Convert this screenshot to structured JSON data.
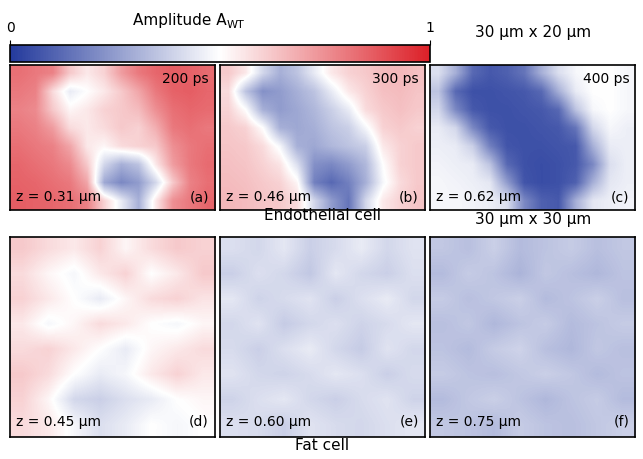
{
  "chart_data": {
    "type": "heatmap",
    "tick_labels": false,
    "colorbar": {
      "label": "Amplitude A",
      "label_subscript": "WT",
      "range": [
        0,
        1
      ],
      "ticks": [
        0,
        1
      ]
    },
    "groups": [
      {
        "label": "Endothelial cell",
        "size": "30 µm x 20 µm",
        "panels": [
          {
            "letter": "(a)",
            "time": "200 ps",
            "z": "z = 0.31 µm",
            "cells": [
              [
                0.82,
                0.8,
                0.78,
                0.62,
                0.55,
                0.6,
                0.72,
                0.8,
                0.84,
                0.86,
                0.85,
                0.83
              ],
              [
                0.8,
                0.78,
                0.58,
                0.45,
                0.5,
                0.55,
                0.62,
                0.7,
                0.8,
                0.85,
                0.86,
                0.84
              ],
              [
                0.78,
                0.76,
                0.62,
                0.52,
                0.55,
                0.6,
                0.62,
                0.65,
                0.75,
                0.82,
                0.84,
                0.83
              ],
              [
                0.8,
                0.78,
                0.72,
                0.58,
                0.55,
                0.58,
                0.62,
                0.6,
                0.68,
                0.8,
                0.82,
                0.8
              ],
              [
                0.82,
                0.8,
                0.78,
                0.7,
                0.55,
                0.52,
                0.58,
                0.6,
                0.62,
                0.75,
                0.8,
                0.82
              ],
              [
                0.84,
                0.82,
                0.8,
                0.76,
                0.62,
                0.4,
                0.3,
                0.35,
                0.55,
                0.72,
                0.8,
                0.83
              ],
              [
                0.85,
                0.84,
                0.82,
                0.8,
                0.7,
                0.28,
                0.2,
                0.25,
                0.4,
                0.62,
                0.78,
                0.82
              ],
              [
                0.86,
                0.85,
                0.84,
                0.82,
                0.78,
                0.6,
                0.45,
                0.3,
                0.55,
                0.75,
                0.8,
                0.84
              ]
            ]
          },
          {
            "letter": "(b)",
            "time": "300 ps",
            "z": "z = 0.46 µm",
            "cells": [
              [
                0.62,
                0.55,
                0.4,
                0.3,
                0.35,
                0.45,
                0.55,
                0.6,
                0.62,
                0.65,
                0.66,
                0.64
              ],
              [
                0.58,
                0.35,
                0.22,
                0.25,
                0.3,
                0.35,
                0.45,
                0.55,
                0.6,
                0.64,
                0.65,
                0.63
              ],
              [
                0.6,
                0.5,
                0.3,
                0.25,
                0.28,
                0.32,
                0.38,
                0.45,
                0.58,
                0.62,
                0.64,
                0.62
              ],
              [
                0.62,
                0.6,
                0.5,
                0.3,
                0.28,
                0.3,
                0.35,
                0.38,
                0.48,
                0.6,
                0.62,
                0.6
              ],
              [
                0.63,
                0.62,
                0.58,
                0.48,
                0.3,
                0.28,
                0.32,
                0.35,
                0.38,
                0.55,
                0.6,
                0.62
              ],
              [
                0.64,
                0.63,
                0.6,
                0.56,
                0.42,
                0.22,
                0.2,
                0.25,
                0.32,
                0.5,
                0.6,
                0.62
              ],
              [
                0.65,
                0.64,
                0.62,
                0.6,
                0.52,
                0.18,
                0.12,
                0.18,
                0.3,
                0.48,
                0.58,
                0.62
              ],
              [
                0.66,
                0.65,
                0.63,
                0.62,
                0.58,
                0.4,
                0.25,
                0.15,
                0.4,
                0.55,
                0.6,
                0.63
              ]
            ]
          },
          {
            "letter": "(c)",
            "time": "400 ps",
            "z": "z = 0.62 µm",
            "cells": [
              [
                0.42,
                0.3,
                0.12,
                0.08,
                0.1,
                0.15,
                0.3,
                0.42,
                0.48,
                0.5,
                0.5,
                0.48
              ],
              [
                0.35,
                0.12,
                0.06,
                0.06,
                0.07,
                0.08,
                0.12,
                0.3,
                0.45,
                0.5,
                0.5,
                0.48
              ],
              [
                0.4,
                0.2,
                0.08,
                0.06,
                0.06,
                0.07,
                0.08,
                0.12,
                0.35,
                0.48,
                0.5,
                0.48
              ],
              [
                0.45,
                0.4,
                0.2,
                0.08,
                0.06,
                0.06,
                0.07,
                0.08,
                0.15,
                0.4,
                0.48,
                0.46
              ],
              [
                0.46,
                0.45,
                0.38,
                0.18,
                0.07,
                0.06,
                0.06,
                0.07,
                0.08,
                0.3,
                0.45,
                0.46
              ],
              [
                0.47,
                0.46,
                0.45,
                0.35,
                0.12,
                0.06,
                0.05,
                0.06,
                0.08,
                0.2,
                0.42,
                0.46
              ],
              [
                0.48,
                0.47,
                0.46,
                0.44,
                0.25,
                0.07,
                0.05,
                0.06,
                0.1,
                0.3,
                0.44,
                0.46
              ],
              [
                0.48,
                0.48,
                0.47,
                0.46,
                0.42,
                0.2,
                0.1,
                0.08,
                0.3,
                0.44,
                0.46,
                0.47
              ]
            ]
          }
        ]
      },
      {
        "label": "Fat cell",
        "size": "30 µm x 30 µm",
        "panels": [
          {
            "letter": "(d)",
            "z": "z = 0.45 µm",
            "cells": [
              [
                0.62,
                0.58,
                0.55,
                0.6,
                0.52,
                0.58,
                0.62,
                0.6
              ],
              [
                0.58,
                0.52,
                0.48,
                0.55,
                0.6,
                0.5,
                0.55,
                0.62
              ],
              [
                0.6,
                0.55,
                0.5,
                0.45,
                0.52,
                0.58,
                0.6,
                0.56
              ],
              [
                0.55,
                0.48,
                0.52,
                0.58,
                0.55,
                0.5,
                0.48,
                0.52
              ],
              [
                0.58,
                0.6,
                0.55,
                0.5,
                0.45,
                0.52,
                0.55,
                0.58
              ],
              [
                0.62,
                0.58,
                0.5,
                0.45,
                0.48,
                0.55,
                0.6,
                0.55
              ],
              [
                0.6,
                0.52,
                0.4,
                0.38,
                0.42,
                0.45,
                0.5,
                0.52
              ],
              [
                0.58,
                0.55,
                0.48,
                0.42,
                0.45,
                0.5,
                0.48,
                0.5
              ]
            ]
          },
          {
            "letter": "(e)",
            "z": "z = 0.60 µm",
            "cells": [
              [
                0.42,
                0.4,
                0.44,
                0.38,
                0.41,
                0.45,
                0.4,
                0.43
              ],
              [
                0.38,
                0.42,
                0.4,
                0.36,
                0.44,
                0.4,
                0.38,
                0.42
              ],
              [
                0.44,
                0.39,
                0.41,
                0.43,
                0.38,
                0.42,
                0.45,
                0.4
              ],
              [
                0.4,
                0.43,
                0.37,
                0.4,
                0.42,
                0.39,
                0.41,
                0.44
              ],
              [
                0.41,
                0.38,
                0.42,
                0.45,
                0.4,
                0.37,
                0.43,
                0.4
              ],
              [
                0.43,
                0.4,
                0.39,
                0.41,
                0.44,
                0.42,
                0.38,
                0.41
              ],
              [
                0.39,
                0.42,
                0.44,
                0.4,
                0.38,
                0.41,
                0.43,
                0.39
              ],
              [
                0.42,
                0.41,
                0.38,
                0.43,
                0.41,
                0.4,
                0.42,
                0.44
              ]
            ]
          },
          {
            "letter": "(f)",
            "z": "z = 0.75 µm",
            "cells": [
              [
                0.36,
                0.34,
                0.38,
                0.33,
                0.35,
                0.37,
                0.34,
                0.36
              ],
              [
                0.33,
                0.37,
                0.35,
                0.31,
                0.36,
                0.34,
                0.32,
                0.35
              ],
              [
                0.37,
                0.34,
                0.36,
                0.38,
                0.33,
                0.35,
                0.38,
                0.34
              ],
              [
                0.34,
                0.36,
                0.32,
                0.35,
                0.37,
                0.33,
                0.35,
                0.37
              ],
              [
                0.35,
                0.33,
                0.37,
                0.39,
                0.34,
                0.32,
                0.36,
                0.34
              ],
              [
                0.37,
                0.35,
                0.34,
                0.36,
                0.38,
                0.36,
                0.33,
                0.35
              ],
              [
                0.33,
                0.36,
                0.38,
                0.35,
                0.32,
                0.35,
                0.37,
                0.33
              ],
              [
                0.36,
                0.35,
                0.33,
                0.37,
                0.35,
                0.34,
                0.36,
                0.38
              ]
            ]
          }
        ]
      }
    ]
  }
}
